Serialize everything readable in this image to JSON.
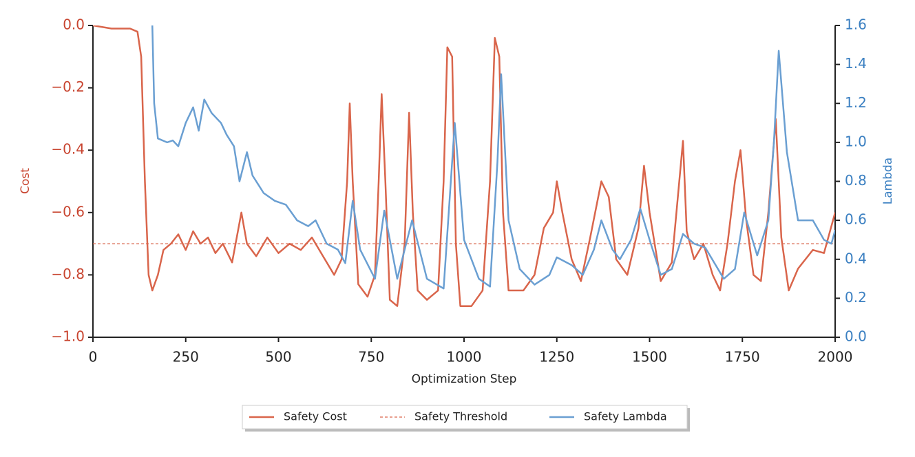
{
  "chart_data": {
    "type": "line",
    "xlabel": "Optimization Step",
    "ylabel": "Cost",
    "y2label": "Lambda",
    "xlim": [
      0,
      2000
    ],
    "xticks": [
      0,
      250,
      500,
      750,
      1000,
      1250,
      1500,
      1750,
      2000
    ],
    "ylim": [
      -1.0,
      0.0
    ],
    "yticks": [
      {
        "value": -1.0,
        "label": "−1.0"
      },
      {
        "value": -0.8,
        "label": "−0.8"
      },
      {
        "value": -0.6,
        "label": "−0.6"
      },
      {
        "value": -0.4,
        "label": "−0.4"
      },
      {
        "value": -0.2,
        "label": "−0.2"
      },
      {
        "value": 0.0,
        "label": "0.0"
      }
    ],
    "y2lim": [
      0.0,
      1.6
    ],
    "y2ticks": [
      {
        "value": 0.0,
        "label": "0.0"
      },
      {
        "value": 0.2,
        "label": "0.2"
      },
      {
        "value": 0.4,
        "label": "0.4"
      },
      {
        "value": 0.6,
        "label": "0.6"
      },
      {
        "value": 0.8,
        "label": "0.8"
      },
      {
        "value": 1.0,
        "label": "1.0"
      },
      {
        "value": 1.2,
        "label": "1.2"
      },
      {
        "value": 1.4,
        "label": "1.4"
      },
      {
        "value": 1.6,
        "label": "1.6"
      }
    ],
    "ycolor": "#c8442f",
    "y2color": "#3a7fc1",
    "threshold": {
      "name": "Safety Threshold",
      "value": -0.7,
      "color": "#d9654b"
    },
    "legend": "bottom",
    "series": [
      {
        "name": "Safety Cost",
        "color": "#d9654b",
        "axis": "y",
        "x": [
          0,
          50,
          100,
          120,
          130,
          140,
          150,
          160,
          175,
          190,
          210,
          230,
          250,
          270,
          290,
          310,
          330,
          350,
          375,
          400,
          415,
          440,
          470,
          500,
          530,
          560,
          590,
          620,
          650,
          670,
          685,
          692,
          700,
          715,
          740,
          760,
          770,
          778,
          788,
          800,
          820,
          840,
          852,
          862,
          875,
          900,
          930,
          945,
          955,
          968,
          978,
          990,
          1020,
          1050,
          1070,
          1083,
          1095,
          1105,
          1120,
          1160,
          1190,
          1215,
          1240,
          1250,
          1265,
          1290,
          1315,
          1340,
          1370,
          1390,
          1410,
          1440,
          1470,
          1485,
          1500,
          1530,
          1560,
          1580,
          1590,
          1600,
          1620,
          1645,
          1670,
          1690,
          1710,
          1730,
          1745,
          1760,
          1780,
          1800,
          1820,
          1840,
          1855,
          1875,
          1900,
          1940,
          1970,
          2000
        ],
        "values": [
          0,
          -0.01,
          -0.01,
          -0.02,
          -0.1,
          -0.5,
          -0.8,
          -0.85,
          -0.8,
          -0.72,
          -0.7,
          -0.67,
          -0.72,
          -0.66,
          -0.7,
          -0.68,
          -0.73,
          -0.7,
          -0.76,
          -0.6,
          -0.7,
          -0.74,
          -0.68,
          -0.73,
          -0.7,
          -0.72,
          -0.68,
          -0.74,
          -0.8,
          -0.75,
          -0.5,
          -0.25,
          -0.5,
          -0.83,
          -0.87,
          -0.8,
          -0.5,
          -0.22,
          -0.5,
          -0.88,
          -0.9,
          -0.7,
          -0.28,
          -0.6,
          -0.85,
          -0.88,
          -0.85,
          -0.5,
          -0.07,
          -0.1,
          -0.7,
          -0.9,
          -0.9,
          -0.85,
          -0.5,
          -0.04,
          -0.1,
          -0.6,
          -0.85,
          -0.85,
          -0.8,
          -0.65,
          -0.6,
          -0.5,
          -0.6,
          -0.75,
          -0.82,
          -0.68,
          -0.5,
          -0.55,
          -0.75,
          -0.8,
          -0.65,
          -0.45,
          -0.6,
          -0.82,
          -0.76,
          -0.5,
          -0.37,
          -0.66,
          -0.75,
          -0.7,
          -0.8,
          -0.85,
          -0.7,
          -0.5,
          -0.4,
          -0.62,
          -0.8,
          -0.82,
          -0.6,
          -0.3,
          -0.68,
          -0.85,
          -0.78,
          -0.72,
          -0.73,
          -0.6
        ]
      },
      {
        "name": "Safety Lambda",
        "color": "#6a9fd2",
        "axis": "y2",
        "x": [
          160,
          165,
          175,
          200,
          215,
          230,
          250,
          270,
          285,
          300,
          320,
          345,
          360,
          380,
          395,
          415,
          430,
          460,
          490,
          520,
          550,
          580,
          600,
          630,
          660,
          680,
          700,
          720,
          760,
          785,
          820,
          860,
          900,
          945,
          975,
          1000,
          1040,
          1070,
          1090,
          1100,
          1120,
          1150,
          1190,
          1230,
          1250,
          1290,
          1320,
          1350,
          1370,
          1400,
          1420,
          1450,
          1475,
          1500,
          1530,
          1560,
          1590,
          1620,
          1650,
          1700,
          1730,
          1755,
          1790,
          1820,
          1835,
          1848,
          1870,
          1900,
          1940,
          1970,
          1990,
          2000
        ],
        "values": [
          1.6,
          1.2,
          1.02,
          1.0,
          1.01,
          0.98,
          1.1,
          1.18,
          1.06,
          1.22,
          1.15,
          1.1,
          1.04,
          0.98,
          0.8,
          0.95,
          0.83,
          0.74,
          0.7,
          0.68,
          0.6,
          0.57,
          0.6,
          0.48,
          0.45,
          0.38,
          0.7,
          0.45,
          0.3,
          0.65,
          0.3,
          0.6,
          0.3,
          0.25,
          1.1,
          0.5,
          0.3,
          0.26,
          0.9,
          1.35,
          0.6,
          0.35,
          0.27,
          0.32,
          0.41,
          0.37,
          0.32,
          0.45,
          0.6,
          0.45,
          0.4,
          0.5,
          0.66,
          0.5,
          0.32,
          0.35,
          0.53,
          0.48,
          0.46,
          0.3,
          0.35,
          0.64,
          0.42,
          0.6,
          1.0,
          1.47,
          0.95,
          0.6,
          0.6,
          0.5,
          0.48,
          0.55
        ]
      }
    ]
  }
}
